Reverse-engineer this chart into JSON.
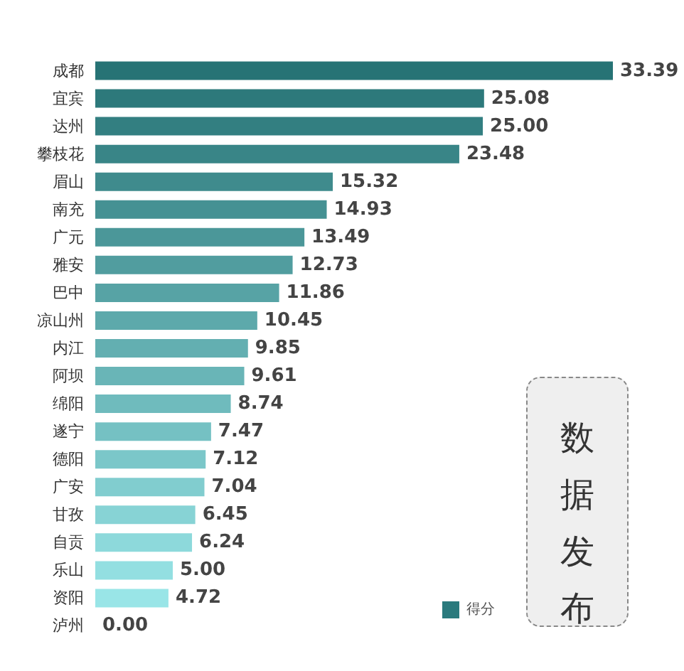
{
  "chart_data": {
    "type": "bar",
    "orientation": "horizontal",
    "tick_labels": false,
    "legend": "bottom right",
    "annotations": [
      "数据发布"
    ],
    "categories": [
      "成都",
      "宜宾",
      "达州",
      "攀枝花",
      "眉山",
      "南充",
      "广元",
      "雅安",
      "巴中",
      "凉山州",
      "内江",
      "阿坝",
      "绵阳",
      "遂宁",
      "德阳",
      "广安",
      "甘孜",
      "自贡",
      "乐山",
      "资阳",
      "泸州"
    ],
    "series": [
      {
        "name": "得分",
        "color": "#2a7a7d",
        "values": [
          33.39,
          25.08,
          25.0,
          23.48,
          15.32,
          14.93,
          13.49,
          12.73,
          11.86,
          10.45,
          9.85,
          9.61,
          8.74,
          7.47,
          7.12,
          7.04,
          6.45,
          6.24,
          5.0,
          4.72,
          0.0
        ],
        "value_labels": [
          "33.39",
          "25.08",
          "25.00",
          "23.48",
          "15.32",
          "14.93",
          "13.49",
          "12.73",
          "11.86",
          "10.45",
          "9.85",
          "9.61",
          "8.74",
          "7.47",
          "7.12",
          "7.04",
          "6.45",
          "6.24",
          "5.00",
          "4.72",
          "0.00"
        ],
        "colors": [
          "#277375",
          "#2d797b",
          "#337f81",
          "#398587",
          "#3f8b8d",
          "#459193",
          "#4b9799",
          "#519d9f",
          "#57a3a5",
          "#5da9ab",
          "#63afb1",
          "#69b5b7",
          "#6fbbbd",
          "#75c1c3",
          "#7bc7c9",
          "#81cdcf",
          "#87d3d5",
          "#8dd9db",
          "#93dfe1",
          "#99e5e7",
          "#9febed"
        ]
      }
    ]
  }
}
